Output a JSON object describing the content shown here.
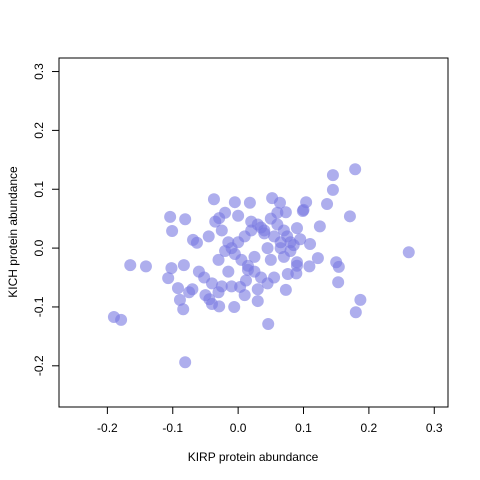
{
  "chart_data": {
    "type": "scatter",
    "x_label": "KIRP protein abundance",
    "y_label": "KICH protein abundance",
    "color": "rgba(120,120,225,0.6)",
    "xlim": [
      -0.274,
      0.321
    ],
    "ylim": [
      -0.27,
      0.323
    ],
    "xticks": [
      -0.2,
      -0.1,
      {
        "value": 0,
        "label": "0.0"
      },
      0.1,
      0.2,
      0.3
    ],
    "yticks": [
      -0.2,
      -0.1,
      {
        "value": 0,
        "label": "0.0"
      },
      0.1,
      0.2,
      0.3
    ],
    "x": [
      0.261,
      0.179,
      0.145,
      0.145,
      0.171,
      0.187,
      0.18,
      0.153,
      0.15,
      0.154,
      0.136,
      -0.081,
      -0.19,
      -0.179,
      -0.165,
      -0.141,
      -0.104,
      -0.101,
      -0.081,
      -0.102,
      -0.107,
      -0.092,
      -0.089,
      -0.084,
      -0.083,
      -0.069,
      -0.063,
      -0.037,
      -0.029,
      -0.005,
      0.018,
      0.052,
      0.064,
      0.073,
      0.104,
      0.099,
      0.09,
      0.125,
      0.11,
      0.122,
      0.109,
      0.09,
      0.089,
      0.076,
      0.073,
      0.046,
      0.015,
      0.003,
      -0.006,
      -0.029,
      -0.044,
      -0.052,
      -0.04,
      -0.03,
      -0.02,
      -0.01,
      0.0,
      0.01,
      0.02,
      0.03,
      0.04,
      0.05,
      0.06,
      0.07,
      0.08,
      -0.045,
      -0.035,
      -0.025,
      -0.015,
      -0.005,
      0.005,
      0.015,
      0.025,
      0.035,
      0.045,
      0.055,
      0.065,
      0.075,
      0.085,
      0.095,
      -0.05,
      -0.03,
      -0.01,
      0.01,
      0.03,
      0.05,
      0.07,
      0.09,
      -0.02,
      0.0,
      0.02,
      0.04,
      0.06,
      -0.06,
      -0.04,
      0.025,
      0.045,
      0.065,
      -0.015,
      0.035,
      0.055,
      0.012,
      -0.025,
      0.08,
      0.1,
      -0.07,
      -0.075,
      0.03
    ],
    "values": [
      -0.007,
      0.134,
      0.124,
      0.099,
      0.054,
      -0.088,
      -0.109,
      -0.058,
      -0.024,
      -0.032,
      0.075,
      -0.194,
      -0.117,
      -0.122,
      -0.029,
      -0.031,
      0.053,
      0.029,
      0.049,
      -0.034,
      -0.051,
      -0.068,
      -0.088,
      -0.104,
      -0.029,
      0.014,
      0.009,
      0.083,
      0.051,
      0.078,
      0.077,
      0.085,
      0.077,
      0.061,
      0.078,
      0.063,
      0.034,
      0.037,
      0.007,
      -0.017,
      -0.031,
      -0.024,
      -0.043,
      -0.044,
      -0.071,
      -0.129,
      -0.037,
      -0.066,
      -0.1,
      -0.099,
      -0.087,
      -0.05,
      -0.06,
      -0.02,
      -0.005,
      0.0,
      0.01,
      0.02,
      0.03,
      0.04,
      0.03,
      0.05,
      0.04,
      0.03,
      0.01,
      0.02,
      0.045,
      0.03,
      0.01,
      -0.01,
      -0.02,
      -0.03,
      -0.04,
      -0.05,
      -0.06,
      -0.05,
      0.0,
      0.02,
      0.005,
      0.015,
      -0.08,
      -0.075,
      -0.065,
      -0.08,
      -0.07,
      -0.02,
      -0.015,
      -0.03,
      0.06,
      0.055,
      0.045,
      0.025,
      0.06,
      -0.04,
      -0.095,
      -0.015,
      0.0,
      0.01,
      -0.04,
      0.035,
      0.02,
      -0.055,
      -0.065,
      -0.005,
      0.065,
      -0.07,
      -0.075,
      -0.09
    ]
  }
}
